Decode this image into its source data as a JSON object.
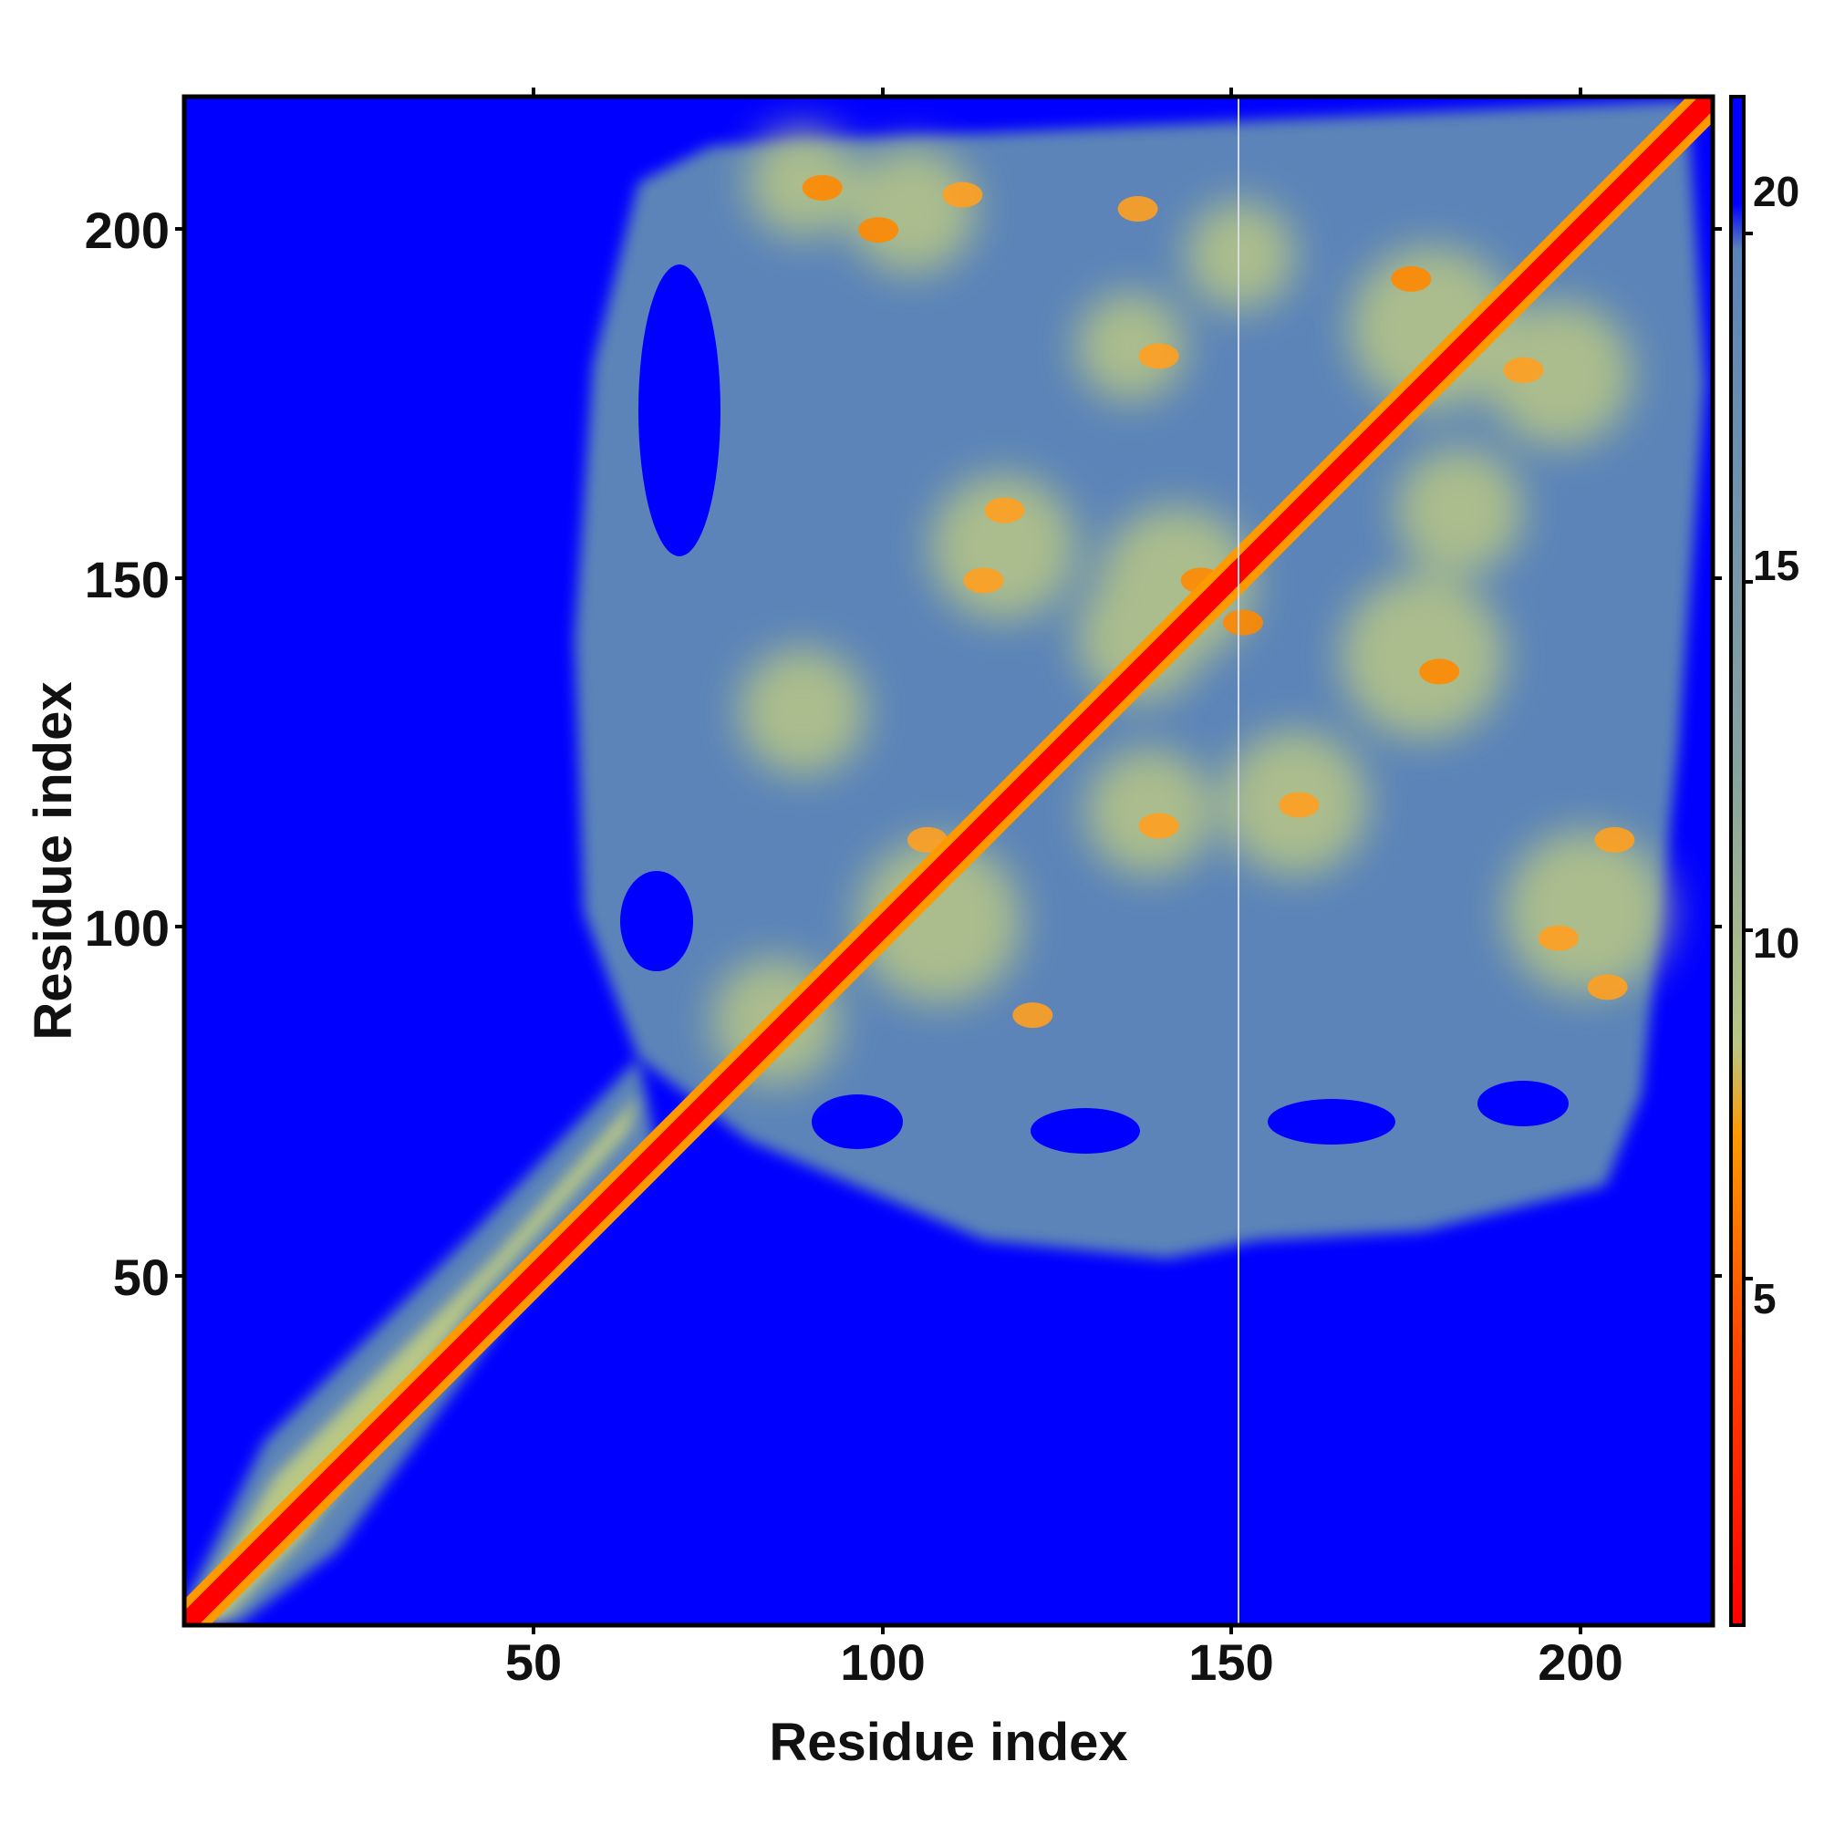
{
  "chart_data": {
    "type": "heatmap",
    "title": "",
    "xlabel": "Residue index",
    "ylabel": "Residue index",
    "xlim": [
      1,
      219
    ],
    "ylim": [
      1,
      219
    ],
    "x_ticks": [
      50,
      100,
      150,
      200
    ],
    "y_ticks": [
      50,
      100,
      150,
      200
    ],
    "x_tick_labels": [
      "50",
      "100",
      "150",
      "200"
    ],
    "y_tick_labels": [
      "50",
      "100",
      "150",
      "200"
    ],
    "colorbar": {
      "range": [
        0.5,
        21
      ],
      "ticks": [
        5,
        10,
        15,
        20
      ],
      "tick_labels": [
        "5",
        "10",
        "15",
        "20"
      ],
      "colors": {
        "near": "#ff0000",
        "close": "#ff8800",
        "mid": "#b9c785",
        "far": "#5b84b8",
        "background": "#0000ff"
      }
    },
    "description_of_cells": "Distance map between residue pairs; diagonal values near 0 (red), off-diagonal contact clusters (orange/yellow), far regions above cutoff (blue)",
    "contact_clusters": [
      {
        "x": 88,
        "y": 88,
        "value": 6
      },
      {
        "x": 92,
        "y": 206,
        "value": 6
      },
      {
        "x": 100,
        "y": 200,
        "value": 6
      },
      {
        "x": 112,
        "y": 205,
        "value": 7
      },
      {
        "x": 137,
        "y": 203,
        "value": 7
      },
      {
        "x": 140,
        "y": 182,
        "value": 7
      },
      {
        "x": 146,
        "y": 150,
        "value": 6
      },
      {
        "x": 152,
        "y": 144,
        "value": 6
      },
      {
        "x": 176,
        "y": 193,
        "value": 6
      },
      {
        "x": 192,
        "y": 180,
        "value": 7
      },
      {
        "x": 180,
        "y": 137,
        "value": 6
      },
      {
        "x": 197,
        "y": 99,
        "value": 7
      },
      {
        "x": 204,
        "y": 92,
        "value": 7
      },
      {
        "x": 205,
        "y": 113,
        "value": 7
      },
      {
        "x": 118,
        "y": 160,
        "value": 8
      },
      {
        "x": 115,
        "y": 150,
        "value": 8
      },
      {
        "x": 108,
        "y": 108,
        "value": 6
      },
      {
        "x": 122,
        "y": 88,
        "value": 8
      },
      {
        "x": 140,
        "y": 115,
        "value": 8
      },
      {
        "x": 160,
        "y": 118,
        "value": 8
      },
      {
        "x": 107,
        "y": 113,
        "value": 7
      }
    ]
  }
}
